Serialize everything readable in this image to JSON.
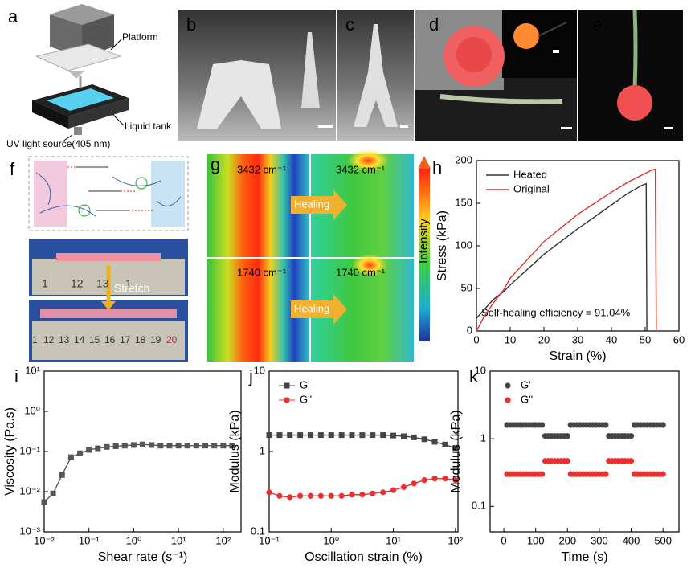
{
  "figure": {
    "panel_labels": [
      "a",
      "b",
      "c",
      "d",
      "e",
      "f",
      "g"
    ],
    "a": {
      "platform": "Platform",
      "liquid_tank": "Liquid tank",
      "uv_source": "UV light source(405 nm)"
    },
    "f": {
      "ruler_top": [
        "1",
        "12",
        "13",
        "1"
      ],
      "stretch": "Stretch",
      "ruler_bottom": [
        "1",
        "12",
        "13",
        "14",
        "15",
        "16",
        "17",
        "18",
        "19",
        "20"
      ]
    },
    "g": {
      "peaks": [
        "3432 cm⁻¹",
        "3432 cm⁻¹",
        "1740 cm⁻¹",
        "1740 cm⁻¹"
      ],
      "healing": [
        "Healing",
        "Healing"
      ],
      "intensity": "Intensity"
    }
  },
  "chart_data": [
    {
      "type": "line",
      "title": "h",
      "x_label": "Strain (%)",
      "y_label": "Stress (kPa)",
      "xlim": [
        0,
        60
      ],
      "ylim": [
        0,
        200
      ],
      "xticks": [
        0,
        10,
        20,
        30,
        40,
        50,
        60
      ],
      "yticks": [
        0,
        50,
        100,
        150,
        200
      ],
      "legend": "upper left",
      "annotation": "Self-healing efficiency = 91.04%",
      "series": [
        {
          "name": "Heated",
          "color": "#333333",
          "x": [
            0,
            5,
            8,
            10,
            20,
            30,
            40,
            45,
            49,
            50.3,
            50.5
          ],
          "values": [
            15,
            37,
            46,
            54,
            90,
            120,
            148,
            162,
            171,
            173,
            0
          ]
        },
        {
          "name": "Original",
          "color": "#e03030",
          "x": [
            0,
            2,
            5,
            8,
            10,
            20,
            30,
            40,
            45,
            50,
            52,
            53,
            53.3
          ],
          "values": [
            0,
            15,
            33,
            48,
            62,
            105,
            137,
            163,
            175,
            185,
            189,
            190,
            0
          ]
        }
      ]
    },
    {
      "type": "line",
      "title": "i",
      "x_label": "Shear rate (s⁻¹)",
      "y_label": "Viscosity (Pa.s)",
      "log_x": true,
      "log_y": true,
      "xlim": [
        0.01,
        250
      ],
      "ylim": [
        0.001,
        10
      ],
      "xticks": [
        {
          "value": 0.01,
          "label": "10⁻²"
        },
        {
          "value": 0.1,
          "label": "10⁻¹"
        },
        {
          "value": 1,
          "label": "10⁰"
        },
        {
          "value": 10,
          "label": "10¹"
        },
        {
          "value": 100,
          "label": "10²"
        }
      ],
      "yticks": [
        {
          "value": 0.001,
          "label": "10⁻³"
        },
        {
          "value": 0.01,
          "label": "10⁻²"
        },
        {
          "value": 0.1,
          "label": "10⁻¹"
        },
        {
          "value": 1,
          "label": "10⁰"
        },
        {
          "value": 10,
          "label": "10¹"
        }
      ],
      "marker": "square",
      "color": "#555555",
      "x": [
        0.01,
        0.0158,
        0.0251,
        0.0398,
        0.0631,
        0.1,
        0.158,
        0.251,
        0.398,
        0.631,
        1,
        1.58,
        2.51,
        3.98,
        6.31,
        10,
        15.8,
        25.1,
        39.8,
        63.1,
        100,
        158
      ],
      "values": [
        0.0055,
        0.009,
        0.026,
        0.072,
        0.09,
        0.11,
        0.12,
        0.13,
        0.135,
        0.14,
        0.145,
        0.15,
        0.145,
        0.14,
        0.14,
        0.14,
        0.14,
        0.14,
        0.14,
        0.14,
        0.14,
        0.14
      ]
    },
    {
      "type": "line",
      "title": "j",
      "x_label": "Oscillation strain (%)",
      "y_label": "Modulus (kPa)",
      "log_x": true,
      "log_y": true,
      "xlim": [
        0.1,
        110
      ],
      "ylim": [
        0.1,
        10
      ],
      "xticks": [
        {
          "value": 0.1,
          "label": "10⁻¹"
        },
        {
          "value": 1,
          "label": "10⁰"
        },
        {
          "value": 10,
          "label": "10¹"
        },
        {
          "value": 100,
          "label": "10²"
        }
      ],
      "yticks": [
        0.1,
        1,
        10
      ],
      "legend": "upper left",
      "x": [
        0.1,
        0.147,
        0.215,
        0.316,
        0.464,
        0.681,
        1,
        1.47,
        2.15,
        3.16,
        4.64,
        6.81,
        10,
        14.7,
        21.5,
        31.6,
        46.4,
        68.1,
        100
      ],
      "series": [
        {
          "name": "G'",
          "color": "#444444",
          "marker": "square",
          "values": [
            1.6,
            1.6,
            1.6,
            1.6,
            1.6,
            1.6,
            1.6,
            1.6,
            1.6,
            1.6,
            1.6,
            1.6,
            1.58,
            1.55,
            1.5,
            1.42,
            1.32,
            1.22,
            1.1
          ]
        },
        {
          "name": "G''",
          "color": "#e83030",
          "marker": "circle",
          "values": [
            0.31,
            0.28,
            0.27,
            0.28,
            0.28,
            0.28,
            0.28,
            0.28,
            0.29,
            0.29,
            0.3,
            0.31,
            0.33,
            0.36,
            0.4,
            0.44,
            0.46,
            0.46,
            0.44
          ]
        }
      ]
    },
    {
      "type": "scatter",
      "title": "k",
      "x_label": "Time (s)",
      "y_label": "Modulus (kPa)",
      "log_y": true,
      "xlim": [
        -43,
        550
      ],
      "ylim": [
        0.042,
        10
      ],
      "xticks": [
        0,
        100,
        200,
        300,
        400,
        500
      ],
      "yticks": [
        0.1,
        1,
        10
      ],
      "legend": "upper left",
      "x": [
        10,
        20,
        30,
        40,
        50,
        60,
        70,
        80,
        90,
        100,
        110,
        120,
        130,
        140,
        150,
        160,
        170,
        180,
        190,
        200,
        210,
        220,
        230,
        240,
        250,
        260,
        270,
        280,
        290,
        300,
        310,
        320,
        330,
        340,
        350,
        360,
        370,
        380,
        390,
        400,
        410,
        420,
        430,
        440,
        450,
        460,
        470,
        480,
        490,
        500
      ],
      "series": [
        {
          "name": "G'",
          "color": "#444444",
          "marker": "circle",
          "values": [
            1.6,
            1.6,
            1.6,
            1.6,
            1.6,
            1.6,
            1.6,
            1.6,
            1.6,
            1.6,
            1.6,
            1.6,
            1.1,
            1.1,
            1.1,
            1.1,
            1.1,
            1.1,
            1.1,
            1.1,
            1.6,
            1.6,
            1.6,
            1.6,
            1.6,
            1.6,
            1.6,
            1.6,
            1.6,
            1.6,
            1.6,
            1.6,
            1.1,
            1.1,
            1.1,
            1.1,
            1.1,
            1.1,
            1.1,
            1.1,
            1.6,
            1.6,
            1.6,
            1.6,
            1.6,
            1.6,
            1.6,
            1.6,
            1.6,
            1.6
          ]
        },
        {
          "name": "G''",
          "color": "#e83030",
          "marker": "circle",
          "values": [
            0.3,
            0.3,
            0.3,
            0.3,
            0.3,
            0.3,
            0.3,
            0.3,
            0.3,
            0.3,
            0.3,
            0.3,
            0.47,
            0.47,
            0.47,
            0.47,
            0.47,
            0.47,
            0.47,
            0.47,
            0.3,
            0.3,
            0.3,
            0.3,
            0.3,
            0.3,
            0.3,
            0.3,
            0.3,
            0.3,
            0.3,
            0.3,
            0.47,
            0.47,
            0.47,
            0.47,
            0.47,
            0.47,
            0.47,
            0.47,
            0.3,
            0.3,
            0.3,
            0.3,
            0.3,
            0.3,
            0.3,
            0.3,
            0.3,
            0.3
          ]
        }
      ]
    }
  ]
}
